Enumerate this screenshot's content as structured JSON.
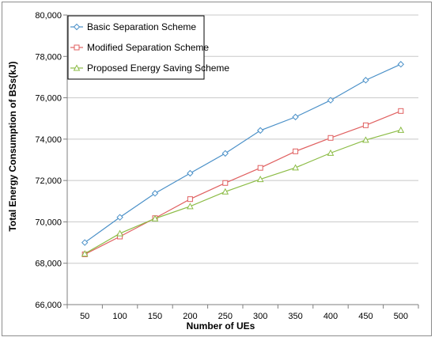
{
  "chart_data": {
    "type": "line",
    "title": "",
    "xlabel": "Number of UEs",
    "ylabel": "Total Energy Consumption of BSs(kJ)",
    "x": [
      50,
      100,
      150,
      200,
      250,
      300,
      350,
      400,
      450,
      500
    ],
    "ylim": [
      66000,
      80000
    ],
    "yticks": [
      66000,
      68000,
      70000,
      72000,
      74000,
      76000,
      78000,
      80000
    ],
    "ytick_labels": [
      "66,000",
      "68,000",
      "70,000",
      "72,000",
      "74,000",
      "76,000",
      "78,000",
      "80,000"
    ],
    "xtick_labels": [
      "50",
      "100",
      "150",
      "200",
      "250",
      "300",
      "350",
      "400",
      "450",
      "500"
    ],
    "grid": "horizontal",
    "legend_position": "top-left",
    "series": [
      {
        "name": "Basic Separation Scheme",
        "color": "#4a90c8",
        "marker": "diamond",
        "values": [
          69000,
          70220,
          71380,
          72350,
          73310,
          74420,
          75070,
          75880,
          76850,
          77620
        ]
      },
      {
        "name": "Modified Separation Scheme",
        "color": "#e06060",
        "marker": "square",
        "values": [
          68430,
          69290,
          70180,
          71100,
          71880,
          72610,
          73410,
          74060,
          74670,
          75360
        ]
      },
      {
        "name": "Proposed Energy Saving Scheme",
        "color": "#8cbc46",
        "marker": "triangle",
        "values": [
          68460,
          69440,
          70160,
          70750,
          71460,
          72060,
          72620,
          73330,
          73960,
          74440
        ]
      }
    ]
  }
}
